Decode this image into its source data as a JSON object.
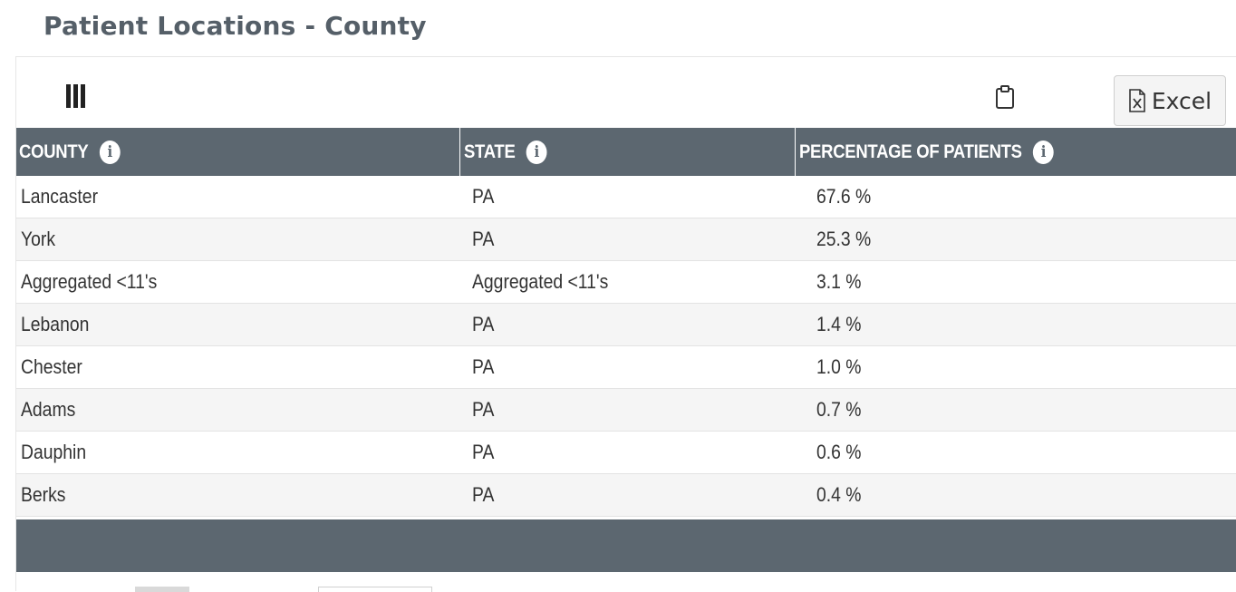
{
  "page": {
    "title": "Patient Locations - County"
  },
  "toolbar": {
    "columns_icon": "columns-icon",
    "clipboard_icon": "clipboard-icon",
    "excel_icon": "file-excel-icon",
    "excel_label": "Excel"
  },
  "table": {
    "headers": {
      "county": "COUNTY",
      "state": "STATE",
      "percentage": "PERCENTAGE OF PATIENTS",
      "info_glyph": "i"
    },
    "rows": [
      {
        "county": "Lancaster",
        "state": "PA",
        "percentage": "67.6 %"
      },
      {
        "county": "York",
        "state": "PA",
        "percentage": "25.3 %"
      },
      {
        "county": "Aggregated <11's",
        "state": "Aggregated <11's",
        "percentage": "3.1 %"
      },
      {
        "county": "Lebanon",
        "state": "PA",
        "percentage": "1.4 %"
      },
      {
        "county": "Chester",
        "state": "PA",
        "percentage": "1.0 %"
      },
      {
        "county": "Adams",
        "state": "PA",
        "percentage": "0.7 %"
      },
      {
        "county": "Dauphin",
        "state": "PA",
        "percentage": "0.6 %"
      },
      {
        "county": "Berks",
        "state": "PA",
        "percentage": "0.4 %"
      }
    ]
  },
  "colors": {
    "header_bg": "#5c6770",
    "title_color": "#555f68",
    "row_alt_bg": "#f5f5f5"
  }
}
